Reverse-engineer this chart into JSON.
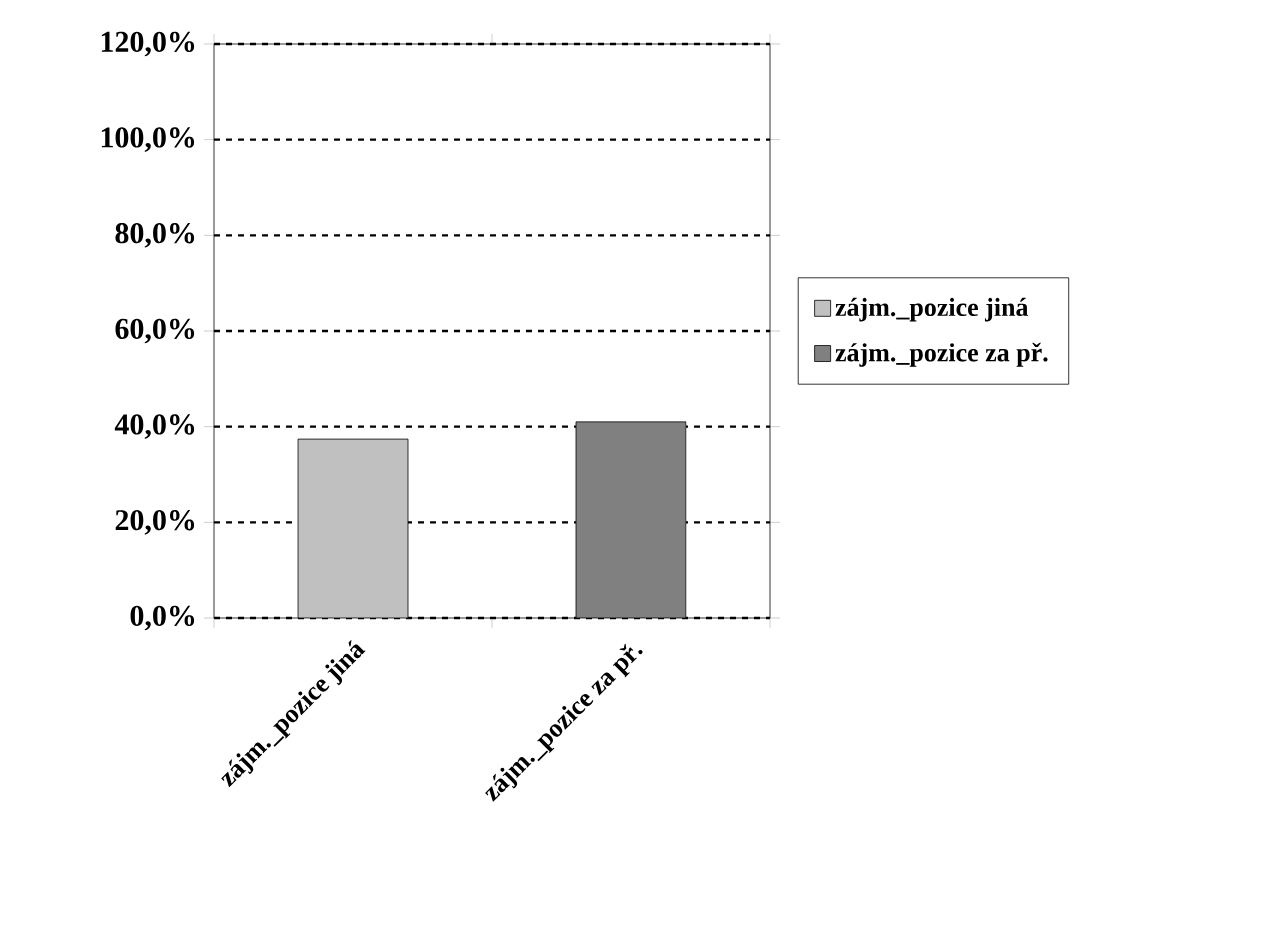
{
  "chart_data": {
    "type": "bar",
    "categories": [
      "zájm._pozice jiná",
      "zájm._pozice za př."
    ],
    "series": [
      {
        "name": "zájm._pozice jiná",
        "color": "#c0c0c0",
        "values": [
          37.4,
          null
        ]
      },
      {
        "name": "zájm._pozice za př.",
        "color": "#808080",
        "values": [
          null,
          41.0
        ]
      }
    ],
    "ylim": [
      0,
      120
    ],
    "yticks": [
      {
        "value": 0,
        "label": "0,0%"
      },
      {
        "value": 20,
        "label": "20,0%"
      },
      {
        "value": 40,
        "label": "40,0%"
      },
      {
        "value": 60,
        "label": "60,0%"
      },
      {
        "value": 80,
        "label": "80,0%"
      },
      {
        "value": 100,
        "label": "100,0%"
      },
      {
        "value": 120,
        "label": "120,0%"
      }
    ],
    "grid": "y",
    "legend": "right"
  }
}
